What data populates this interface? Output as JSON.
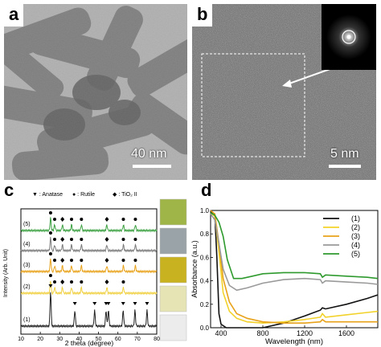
{
  "panel_a": {
    "label": "a",
    "scale_bar": "40 nm"
  },
  "panel_b": {
    "label": "b",
    "scale_bar": "5 nm"
  },
  "panel_c": {
    "label": "c",
    "legend": [
      "▼ : Anatase",
      "● : Rutile",
      "◆ : TiO₂ II"
    ],
    "ylabel": "Intensity (Arb. Unit)",
    "xlabel": "2 theta (degree)",
    "sample_labels": [
      "(5)",
      "(4)",
      "(3)",
      "(2)",
      "(1)"
    ],
    "swatch_colors": [
      "#9fb548",
      "#9aa3a8",
      "#c9b21f",
      "#e6e4b5",
      "#ececec"
    ]
  },
  "panel_d": {
    "label": "d"
  },
  "chart_data": [
    {
      "type": "line",
      "title": "",
      "xlabel": "2 theta (degree)",
      "ylabel": "Intensity (Arb. Unit)",
      "xlim": [
        10,
        80
      ],
      "x_ticks": [
        10,
        20,
        30,
        40,
        50,
        60,
        70,
        80
      ],
      "series": [
        {
          "name": "(5)",
          "color": "#3aa040",
          "peaks_2theta": [
            25.3,
            27.4,
            31.4,
            36.1,
            41.2,
            54.3,
            62.8,
            69.0
          ]
        },
        {
          "name": "(4)",
          "color": "#7a7a7a",
          "peaks_2theta": [
            25.3,
            27.4,
            31.4,
            36.1,
            41.2,
            54.3,
            62.8,
            69.0
          ]
        },
        {
          "name": "(3)",
          "color": "#e8a21a",
          "peaks_2theta": [
            25.3,
            27.4,
            31.4,
            36.1,
            41.2,
            54.3,
            62.8,
            69.0
          ]
        },
        {
          "name": "(2)",
          "color": "#f0d040",
          "peaks_2theta": [
            25.3,
            27.4,
            31.4,
            36.1,
            41.2,
            54.3,
            62.8
          ]
        },
        {
          "name": "(1)",
          "color": "#222222",
          "peaks_2theta": [
            25.3,
            37.8,
            48.0,
            53.9,
            55.1,
            62.7,
            68.8,
            75.0
          ]
        }
      ]
    },
    {
      "type": "line",
      "title": "",
      "xlabel": "Wavelength (nm)",
      "ylabel": "Absorbance (a.u.)",
      "xlim": [
        300,
        1900
      ],
      "ylim": [
        0.0,
        1.0
      ],
      "x_ticks": [
        400,
        800,
        1200,
        1600
      ],
      "y_ticks": [
        0.0,
        0.2,
        0.4,
        0.6,
        0.8,
        1.0
      ],
      "legend_position": "top-right",
      "series": [
        {
          "name": "(1)",
          "color": "#111111",
          "x": [
            300,
            340,
            360,
            380,
            400,
            450,
            600,
            800,
            1000,
            1200,
            1350,
            1370,
            1400,
            1600,
            1800,
            1900
          ],
          "y": [
            0.99,
            0.97,
            0.6,
            0.12,
            0.03,
            0.0,
            0.0,
            0.0,
            0.04,
            0.1,
            0.15,
            0.17,
            0.16,
            0.2,
            0.25,
            0.28
          ]
        },
        {
          "name": "(2)",
          "color": "#f2d22a",
          "x": [
            300,
            340,
            380,
            420,
            480,
            550,
            650,
            800,
            1000,
            1200,
            1350,
            1370,
            1400,
            1600,
            1800,
            1900
          ],
          "y": [
            0.98,
            0.95,
            0.65,
            0.3,
            0.14,
            0.08,
            0.05,
            0.04,
            0.05,
            0.07,
            0.09,
            0.12,
            0.09,
            0.11,
            0.13,
            0.14
          ]
        },
        {
          "name": "(3)",
          "color": "#e8a21a",
          "x": [
            300,
            340,
            380,
            420,
            480,
            550,
            650,
            800,
            1000,
            1200,
            1350,
            1370,
            1400,
            1600,
            1800,
            1900
          ],
          "y": [
            1.0,
            0.97,
            0.72,
            0.42,
            0.22,
            0.12,
            0.08,
            0.05,
            0.04,
            0.04,
            0.05,
            0.07,
            0.05,
            0.05,
            0.05,
            0.05
          ]
        },
        {
          "name": "(4)",
          "color": "#9a9a9a",
          "x": [
            300,
            340,
            380,
            420,
            480,
            550,
            650,
            800,
            1000,
            1200,
            1350,
            1370,
            1400,
            1600,
            1800,
            1900
          ],
          "y": [
            0.97,
            0.92,
            0.72,
            0.5,
            0.36,
            0.32,
            0.34,
            0.38,
            0.41,
            0.42,
            0.41,
            0.38,
            0.4,
            0.39,
            0.38,
            0.37
          ]
        },
        {
          "name": "(5)",
          "color": "#2e9a2e",
          "x": [
            300,
            340,
            380,
            420,
            460,
            520,
            600,
            700,
            800,
            1000,
            1200,
            1350,
            1370,
            1400,
            1600,
            1800,
            1900
          ],
          "y": [
            0.98,
            0.96,
            0.9,
            0.78,
            0.58,
            0.42,
            0.42,
            0.44,
            0.46,
            0.47,
            0.47,
            0.46,
            0.43,
            0.45,
            0.44,
            0.43,
            0.42
          ]
        }
      ]
    }
  ]
}
